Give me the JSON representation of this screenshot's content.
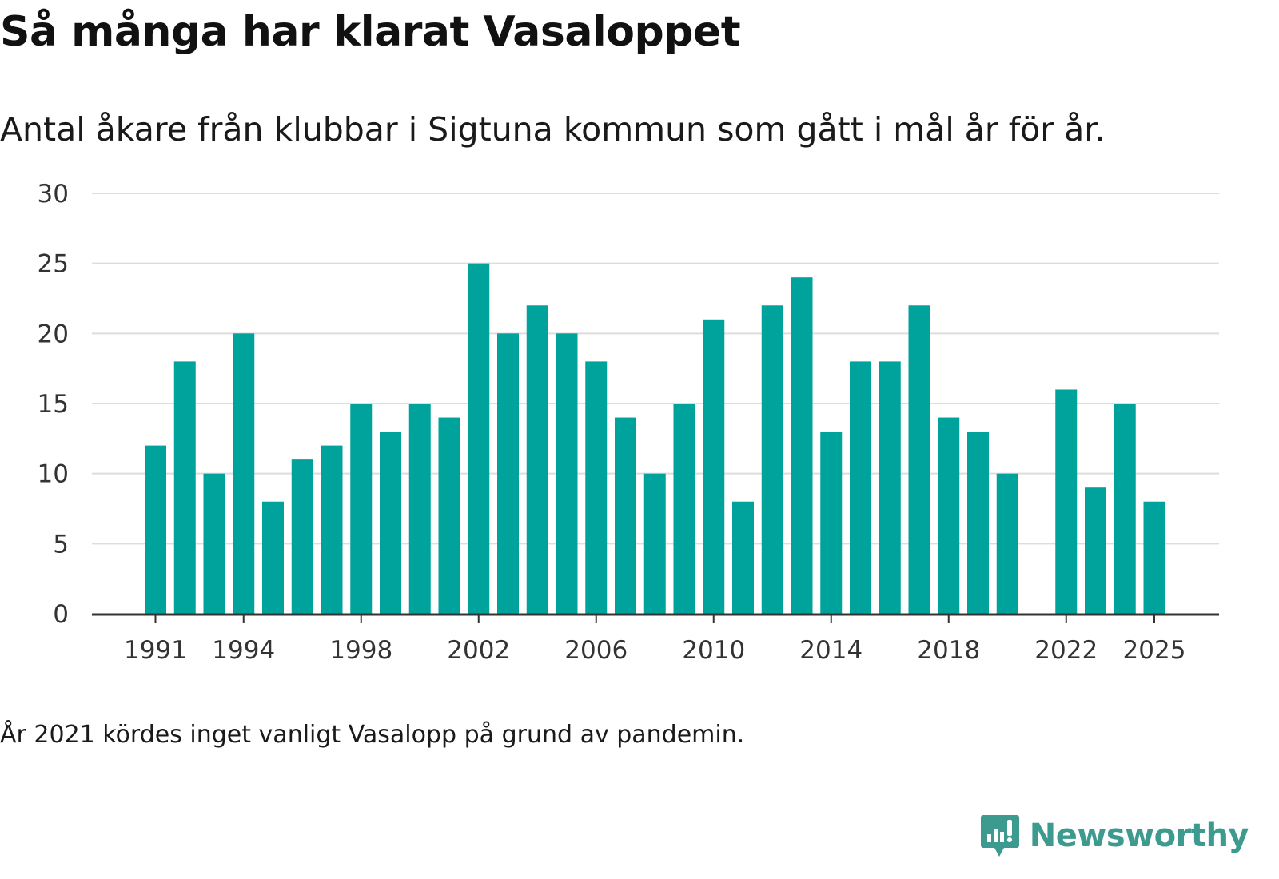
{
  "header": {
    "title": "Så många har klarat Vasaloppet",
    "subtitle": "Antal åkare från klubbar i Sigtuna kommun som gått i mål år för år."
  },
  "footer": {
    "note": "År 2021 kördes inget vanligt Vasalopp på grund av pandemin."
  },
  "brand": {
    "name": "Newsworthy",
    "icon": "newsworthy-logo-icon",
    "color": "#3d9a8f"
  },
  "colors": {
    "bar": "#00a39b",
    "grid": "#dddddd",
    "axis": "#333333"
  },
  "chart_data": {
    "type": "bar",
    "title": "Så många har klarat Vasaloppet",
    "xlabel": "",
    "ylabel": "",
    "ylim": [
      0,
      30
    ],
    "yticks": [
      0,
      5,
      10,
      15,
      20,
      25,
      30
    ],
    "grid": true,
    "legend": "none",
    "categories": [
      1991,
      1992,
      1993,
      1994,
      1995,
      1996,
      1997,
      1998,
      1999,
      2000,
      2001,
      2002,
      2003,
      2004,
      2005,
      2006,
      2007,
      2008,
      2009,
      2010,
      2011,
      2012,
      2013,
      2014,
      2015,
      2016,
      2017,
      2018,
      2019,
      2020,
      2021,
      2022,
      2023,
      2024,
      2025
    ],
    "values": [
      12,
      18,
      10,
      20,
      8,
      11,
      12,
      15,
      13,
      15,
      14,
      25,
      20,
      22,
      20,
      18,
      14,
      10,
      15,
      21,
      8,
      22,
      24,
      13,
      18,
      18,
      22,
      14,
      13,
      10,
      null,
      16,
      9,
      15,
      8
    ],
    "xtick_labels": [
      "1991",
      "1994",
      "1998",
      "2002",
      "2006",
      "2010",
      "2014",
      "2018",
      "2022",
      "2025"
    ]
  }
}
